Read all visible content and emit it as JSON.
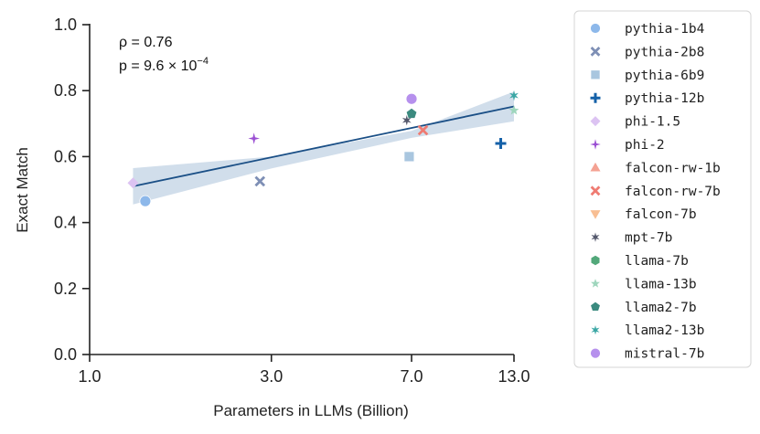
{
  "chart_data": {
    "type": "scatter",
    "title": "",
    "xlabel": "Parameters in LLMs (Billion)",
    "ylabel": "Exact Match",
    "x_scale": "log",
    "xlim": [
      1.0,
      13.0
    ],
    "ylim": [
      0.0,
      1.0
    ],
    "x_ticks": [
      1.0,
      3.0,
      7.0,
      13.0
    ],
    "x_tick_labels": [
      "1.0",
      "3.0",
      "7.0",
      "13.0"
    ],
    "y_ticks": [
      0.0,
      0.2,
      0.4,
      0.6,
      0.8,
      1.0
    ],
    "y_tick_labels": [
      "0.0",
      "0.2",
      "0.4",
      "0.6",
      "0.8",
      "1.0"
    ],
    "annotation": {
      "rho_line": "ρ = 0.76",
      "p_prefix": "p = 9.6 × 10",
      "p_exponent": "−4"
    },
    "legend_position": "outside-right",
    "series": [
      {
        "name": "pythia-1b4",
        "marker": "circle",
        "color": "#8db8ea",
        "x": 1.4,
        "y": 0.465
      },
      {
        "name": "pythia-2b8",
        "marker": "x",
        "color": "#7e8fb5",
        "x": 2.8,
        "y": 0.525
      },
      {
        "name": "pythia-6b9",
        "marker": "square",
        "color": "#a9c6df",
        "x": 6.9,
        "y": 0.6
      },
      {
        "name": "pythia-12b",
        "marker": "plus",
        "color": "#1561a8",
        "x": 12.0,
        "y": 0.64
      },
      {
        "name": "phi-1.5",
        "marker": "diamond",
        "color": "#dcc3f2",
        "x": 1.3,
        "y": 0.52
      },
      {
        "name": "phi-2",
        "marker": "thin-diamond",
        "color": "#9b4fd3",
        "x": 2.7,
        "y": 0.655
      },
      {
        "name": "falcon-rw-1b",
        "marker": "triangle-up",
        "color": "#f4a293",
        "x": null,
        "y": null
      },
      {
        "name": "falcon-rw-7b",
        "marker": "x",
        "color": "#ef7b72",
        "x": 7.5,
        "y": 0.68
      },
      {
        "name": "falcon-7b",
        "marker": "triangle-down",
        "color": "#f8be93",
        "x": null,
        "y": null
      },
      {
        "name": "mpt-7b",
        "marker": "star6",
        "color": "#54586c",
        "x": 6.8,
        "y": 0.71
      },
      {
        "name": "llama-7b",
        "marker": "hexagon",
        "color": "#52a87a",
        "x": null,
        "y": null
      },
      {
        "name": "llama-13b",
        "marker": "star",
        "color": "#9fd6bd",
        "x": 13.0,
        "y": 0.74
      },
      {
        "name": "llama2-7b",
        "marker": "pentagon",
        "color": "#3b8a7f",
        "x": 7.0,
        "y": 0.73
      },
      {
        "name": "llama2-13b",
        "marker": "star6",
        "color": "#3ba7a5",
        "x": 13.0,
        "y": 0.785
      },
      {
        "name": "mistral-7b",
        "marker": "circle",
        "color": "#b690ed",
        "x": 7.0,
        "y": 0.775
      }
    ],
    "regression": {
      "x_range": [
        1.3,
        13.0
      ],
      "y_start": 0.51,
      "y_end": 0.752,
      "ci_upper": [
        0.565,
        0.6,
        0.678,
        0.797
      ],
      "ci_lower": [
        0.455,
        0.564,
        0.657,
        0.707
      ],
      "ci_x": [
        1.3,
        3.0,
        7.0,
        13.0
      ],
      "line_color": "#1a4f86",
      "band_color": "#c9d8e8"
    }
  }
}
